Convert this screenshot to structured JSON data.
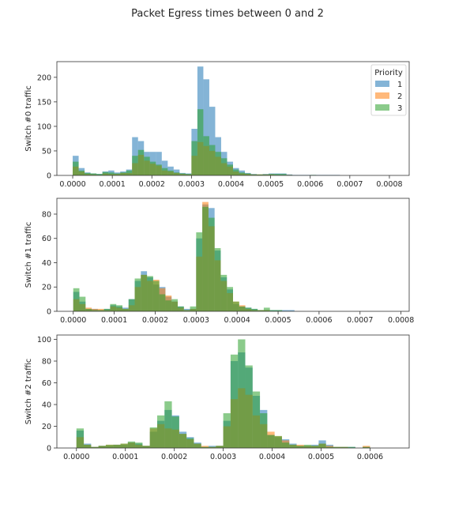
{
  "figure": {
    "title": "Packet Egress times between 0 and 2"
  },
  "legend": {
    "title": "Priority",
    "placement": "top-right",
    "entries": [
      "1",
      "2",
      "3"
    ],
    "colors": [
      "#1f77b4",
      "#ff7f0e",
      "#2ca02c"
    ]
  },
  "chart_data": [
    {
      "type": "bar",
      "ylabel": "Switch #0 traffic",
      "xlim": [
        -4e-05,
        0.00085
      ],
      "ylim": [
        0,
        232
      ],
      "xticks": [
        "0.0000",
        "0.0001",
        "0.0002",
        "0.0003",
        "0.0004",
        "0.0005",
        "0.0006",
        "0.0007",
        "0.0008"
      ],
      "yticks": [
        "0",
        "50",
        "100",
        "150",
        "200"
      ],
      "x": [
        0.0,
        1.5e-05,
        3e-05,
        4.5e-05,
        6e-05,
        7.5e-05,
        9e-05,
        0.000105,
        0.00012,
        0.000135,
        0.00015,
        0.000165,
        0.00018,
        0.000195,
        0.00021,
        0.000225,
        0.00024,
        0.000255,
        0.00027,
        0.000285,
        0.0003,
        0.000315,
        0.00033,
        0.000345,
        0.00036,
        0.000375,
        0.00039,
        0.000405,
        0.00042,
        0.000435,
        0.00045,
        0.000465,
        0.00048,
        0.000495,
        0.00051,
        0.000525,
        0.00054,
        0.000555,
        0.00057,
        0.000585,
        0.0006,
        0.000615,
        0.00063,
        0.000645,
        0.00066
      ],
      "series": [
        {
          "name": "1",
          "values": [
            40,
            15,
            6,
            4,
            3,
            8,
            10,
            6,
            8,
            12,
            78,
            70,
            48,
            48,
            48,
            30,
            18,
            12,
            5,
            4,
            95,
            222,
            196,
            140,
            78,
            48,
            28,
            15,
            10,
            5,
            3,
            2,
            3,
            4,
            4,
            4,
            2,
            1,
            1,
            1,
            1,
            1,
            1,
            1,
            1
          ]
        },
        {
          "name": "2",
          "values": [
            18,
            8,
            3,
            2,
            1,
            4,
            3,
            3,
            5,
            5,
            25,
            42,
            30,
            24,
            20,
            10,
            8,
            5,
            3,
            2,
            40,
            68,
            60,
            50,
            38,
            25,
            18,
            8,
            4,
            3,
            2,
            2,
            2,
            2,
            1,
            1,
            1,
            0,
            0,
            0,
            0,
            0,
            0,
            0,
            0
          ]
        },
        {
          "name": "3",
          "values": [
            28,
            10,
            5,
            4,
            3,
            7,
            6,
            4,
            6,
            10,
            40,
            52,
            38,
            28,
            22,
            15,
            10,
            6,
            4,
            3,
            70,
            135,
            80,
            62,
            48,
            35,
            22,
            12,
            6,
            4,
            2,
            2,
            2,
            3,
            3,
            3,
            1,
            0,
            0,
            0,
            1,
            0,
            0,
            0,
            0
          ]
        }
      ]
    },
    {
      "type": "bar",
      "ylabel": "Switch #1 traffic",
      "xlim": [
        -4e-05,
        0.00082
      ],
      "ylim": [
        0,
        93
      ],
      "xticks": [
        "0.0000",
        "0.0001",
        "0.0002",
        "0.0003",
        "0.0004",
        "0.0005",
        "0.0006",
        "0.0007",
        "0.0008"
      ],
      "yticks": [
        "0",
        "20",
        "40",
        "60",
        "80"
      ],
      "x": [
        0.0,
        1.5e-05,
        3e-05,
        4.5e-05,
        6e-05,
        7.5e-05,
        9e-05,
        0.000105,
        0.00012,
        0.000135,
        0.00015,
        0.000165,
        0.00018,
        0.000195,
        0.00021,
        0.000225,
        0.00024,
        0.000255,
        0.00027,
        0.000285,
        0.0003,
        0.000315,
        0.00033,
        0.000345,
        0.00036,
        0.000375,
        0.00039,
        0.000405,
        0.00042,
        0.000435,
        0.00045,
        0.000465,
        0.00048,
        0.000495,
        0.00051,
        0.000525,
        0.00054,
        0.000555
      ],
      "series": [
        {
          "name": "1",
          "values": [
            16,
            8,
            2,
            2,
            1,
            2,
            5,
            4,
            3,
            10,
            25,
            33,
            28,
            22,
            20,
            12,
            8,
            4,
            2,
            2,
            60,
            88,
            85,
            50,
            28,
            18,
            6,
            4,
            3,
            2,
            1,
            1,
            1,
            1,
            1,
            1,
            0,
            0
          ]
        },
        {
          "name": "2",
          "values": [
            10,
            6,
            3,
            2,
            2,
            1,
            4,
            3,
            2,
            5,
            20,
            30,
            25,
            26,
            19,
            13,
            8,
            3,
            1,
            2,
            45,
            90,
            70,
            42,
            25,
            15,
            8,
            5,
            2,
            1,
            1,
            1,
            0,
            0,
            0,
            0,
            0,
            0
          ]
        },
        {
          "name": "3",
          "values": [
            19,
            12,
            2,
            1,
            1,
            2,
            6,
            5,
            2,
            10,
            27,
            30,
            29,
            25,
            14,
            9,
            10,
            4,
            1,
            4,
            65,
            86,
            77,
            52,
            30,
            20,
            8,
            4,
            3,
            2,
            1,
            3,
            1,
            1,
            0,
            0,
            0,
            0
          ]
        }
      ]
    },
    {
      "type": "bar",
      "ylabel": "Switch #2 traffic",
      "xlim": [
        -4e-05,
        0.00068
      ],
      "ylim": [
        0,
        104
      ],
      "xticks": [
        "0.0000",
        "0.0001",
        "0.0002",
        "0.0003",
        "0.0004",
        "0.0005",
        "0.0006"
      ],
      "yticks": [
        "0",
        "20",
        "40",
        "60",
        "80",
        "100"
      ],
      "x": [
        0.0,
        1.5e-05,
        3e-05,
        4.5e-05,
        6e-05,
        7.5e-05,
        9e-05,
        0.000105,
        0.00012,
        0.000135,
        0.00015,
        0.000165,
        0.00018,
        0.000195,
        0.00021,
        0.000225,
        0.00024,
        0.000255,
        0.00027,
        0.000285,
        0.0003,
        0.000315,
        0.00033,
        0.000345,
        0.00036,
        0.000375,
        0.00039,
        0.000405,
        0.00042,
        0.000435,
        0.00045,
        0.000465,
        0.00048,
        0.000495,
        0.00051,
        0.000525,
        0.00054,
        0.000555,
        0.00057,
        0.000585
      ],
      "series": [
        {
          "name": "1",
          "values": [
            16,
            4,
            1,
            2,
            2,
            3,
            3,
            5,
            4,
            2,
            15,
            25,
            35,
            30,
            15,
            10,
            5,
            1,
            2,
            2,
            25,
            80,
            88,
            74,
            48,
            35,
            12,
            10,
            8,
            4,
            2,
            2,
            3,
            7,
            3,
            1,
            1,
            1,
            0,
            1
          ]
        },
        {
          "name": "2",
          "values": [
            10,
            3,
            1,
            2,
            3,
            3,
            4,
            5,
            3,
            2,
            18,
            22,
            18,
            17,
            13,
            8,
            4,
            2,
            1,
            2,
            20,
            45,
            55,
            49,
            30,
            22,
            15,
            11,
            7,
            3,
            3,
            2,
            2,
            4,
            2,
            1,
            1,
            0,
            0,
            2
          ]
        },
        {
          "name": "3",
          "values": [
            18,
            3,
            1,
            2,
            3,
            3,
            4,
            6,
            5,
            2,
            19,
            30,
            43,
            29,
            13,
            9,
            4,
            1,
            1,
            2,
            32,
            86,
            100,
            76,
            52,
            32,
            12,
            11,
            5,
            3,
            2,
            3,
            2,
            4,
            1,
            1,
            1,
            1,
            0,
            1
          ]
        }
      ]
    }
  ]
}
